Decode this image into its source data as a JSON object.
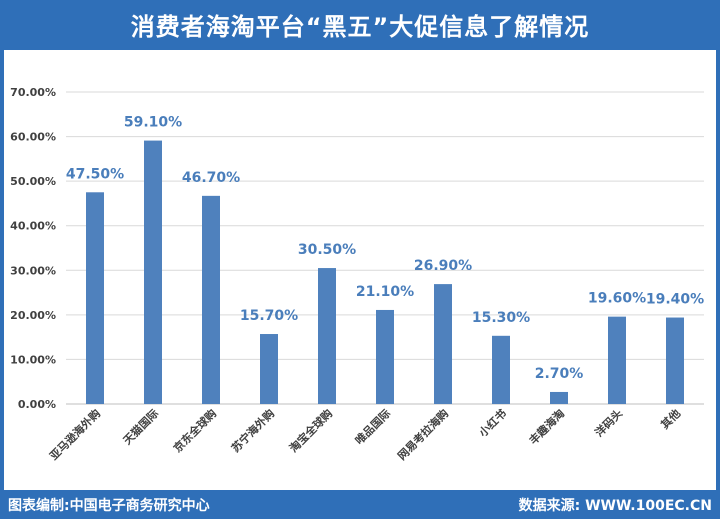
{
  "header": {
    "title": "消费者海淘平台“黑五”大促信息了解情况"
  },
  "footer": {
    "left": "图表编制:中国电子商务研究中心",
    "right": "数据来源: WWW.100EC.CN"
  },
  "colors": {
    "frame": "#2f6fb8",
    "bar": "#4f81bd",
    "value_label": "#4a7ebb",
    "grid": "#d9d9d9"
  },
  "chart_data": {
    "type": "bar",
    "title": "消费者海淘平台“黑五”大促信息了解情况",
    "categories": [
      "亚马逊海外购",
      "天猫国际",
      "京东全球购",
      "苏宁海外购",
      "淘宝全球购",
      "唯品国际",
      "网易考拉海购",
      "小红书",
      "丰趣海淘",
      "洋码头",
      "其他"
    ],
    "values": [
      47.5,
      59.1,
      46.7,
      15.7,
      30.5,
      21.1,
      26.9,
      15.3,
      2.7,
      19.6,
      19.4
    ],
    "value_labels": [
      "47.50%",
      "59.10%",
      "46.70%",
      "15.70%",
      "30.50%",
      "21.10%",
      "26.90%",
      "15.30%",
      "2.70%",
      "19.60%",
      "19.40%"
    ],
    "y_ticks": [
      "0.00%",
      "10.00%",
      "20.00%",
      "30.00%",
      "40.00%",
      "50.00%",
      "60.00%",
      "70.00%"
    ],
    "ylim": [
      0,
      70
    ],
    "y_tick_values": [
      0,
      10,
      20,
      30,
      40,
      50,
      60,
      70
    ],
    "grid": true,
    "legend": "none"
  }
}
